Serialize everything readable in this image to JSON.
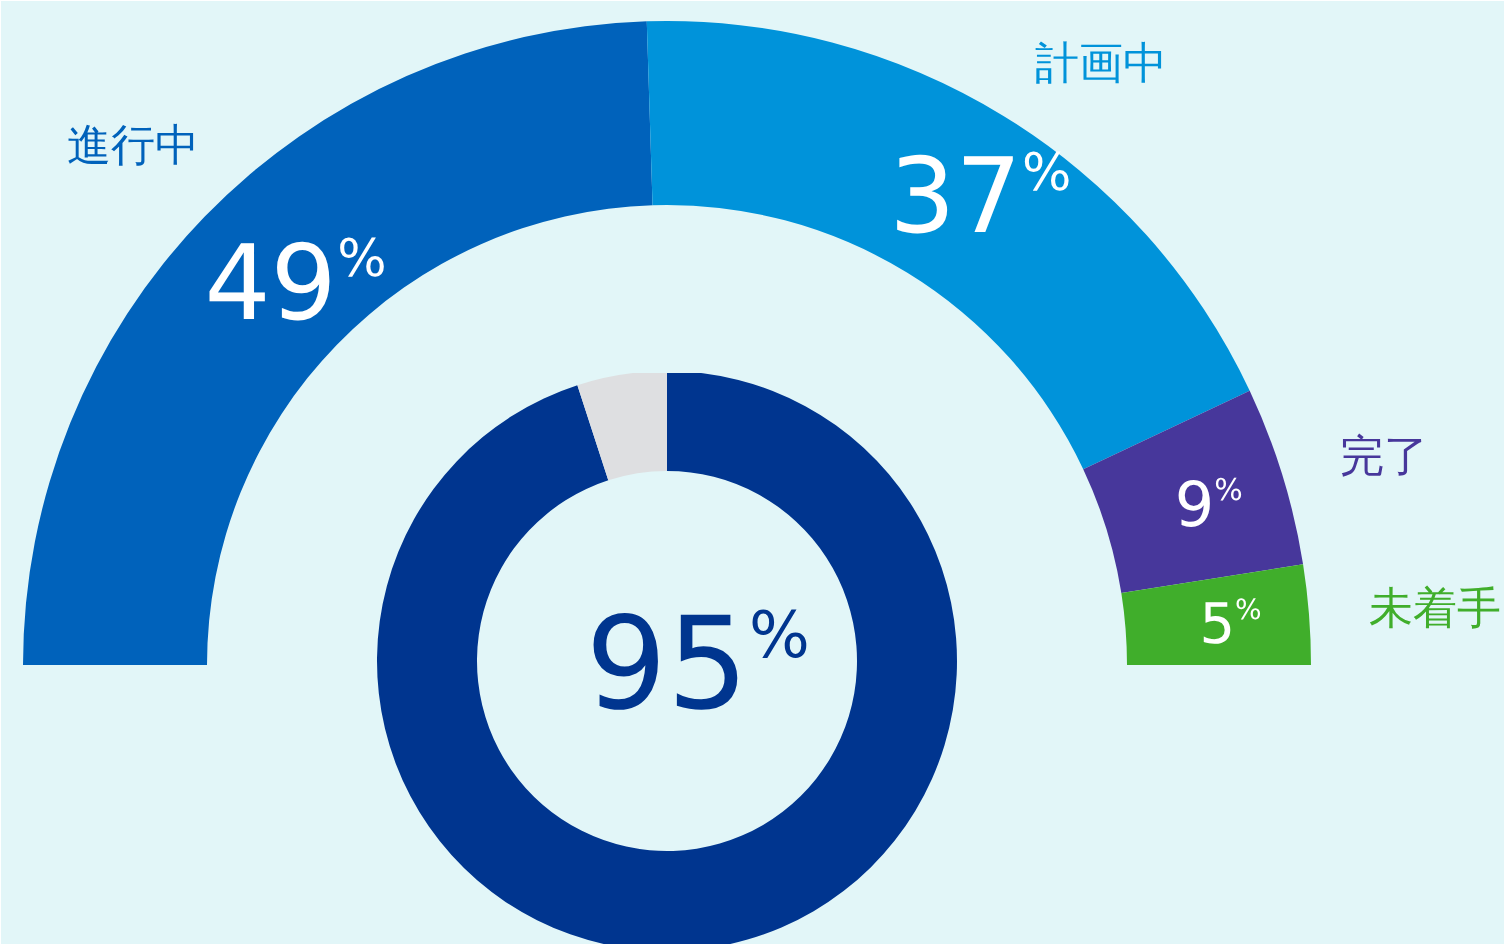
{
  "chart_data": [
    {
      "type": "donut",
      "categories": [
        "進行中",
        "計画中",
        "完了",
        "未着手"
      ],
      "values": [
        49,
        37,
        9,
        5
      ],
      "colors": [
        "#0062bb",
        "#0093da",
        "#47379b",
        "#40ae2b"
      ],
      "value_labels": [
        "49%",
        "37%",
        "9%",
        "5%"
      ]
    },
    {
      "type": "donut",
      "categories": [
        null,
        null
      ],
      "values": [
        95,
        5
      ],
      "colors": [
        "#00358f",
        "#dedfe1"
      ],
      "value_labels": [
        "95%",
        null
      ]
    }
  ]
}
